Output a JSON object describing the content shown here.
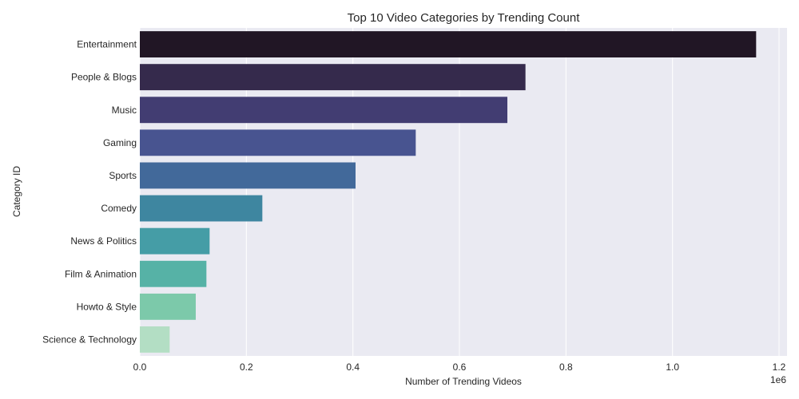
{
  "chart_data": {
    "type": "bar",
    "orientation": "horizontal",
    "title": "Top 10 Video Categories by Trending Count",
    "xlabel": "Number of Trending Videos",
    "ylabel": "Category ID",
    "x_offset_label": "1e6",
    "xlim": [
      0,
      1.215
    ],
    "xticks": [
      0.0,
      0.2,
      0.4,
      0.6,
      0.8,
      1.0,
      1.2
    ],
    "xtick_labels": [
      "0.0",
      "0.2",
      "0.4",
      "0.6",
      "0.8",
      "1.0",
      "1.2"
    ],
    "grid": true,
    "categories": [
      "Entertainment",
      "People & Blogs",
      "Music",
      "Gaming",
      "Sports",
      "Comedy",
      "News & Politics",
      "Film & Animation",
      "Howto & Style",
      "Science & Technology"
    ],
    "values": [
      1.157,
      0.724,
      0.69,
      0.518,
      0.405,
      0.23,
      0.131,
      0.125,
      0.105,
      0.056
    ],
    "colors": [
      "#211625",
      "#352a4c",
      "#423d72",
      "#485490",
      "#42699a",
      "#3e86a0",
      "#459da6",
      "#56b2a6",
      "#7cc9aa",
      "#b3dec4"
    ]
  }
}
